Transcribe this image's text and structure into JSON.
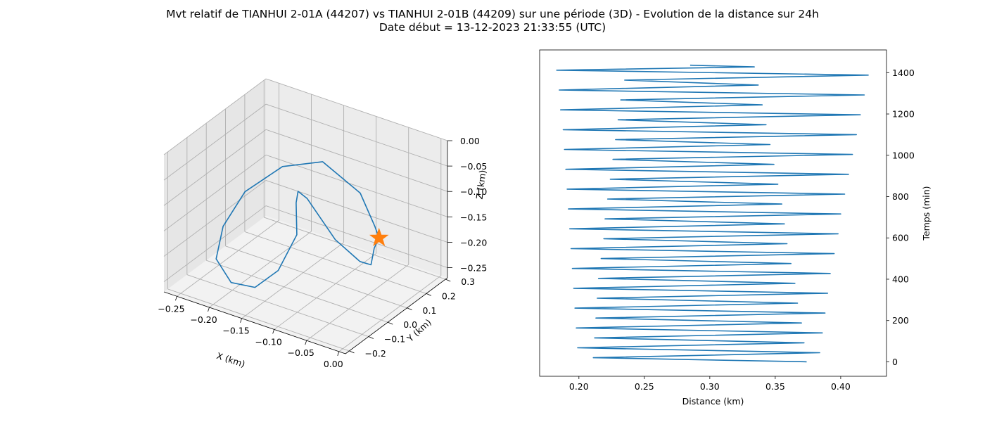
{
  "figure": {
    "title_line1": "Mvt relatif de TIANHUI 2-01A (44207) vs TIANHUI 2-01B (44209) sur une période (3D) - Evolution de la distance sur 24h",
    "title_line2": "Date début = 13-12-2023 21:33:55 (UTC)"
  },
  "colors": {
    "series": "#1f77b4",
    "marker": "#ff7f0e",
    "grid": "#b0b0b0",
    "pane": "#f2f2f2"
  },
  "chart_data": [
    {
      "type": "line3d",
      "xlabel": "X (km)",
      "ylabel": "Y (km)",
      "zlabel": "Z (km)",
      "xlim": [
        -0.27,
        0.01
      ],
      "ylim": [
        -0.22,
        0.31
      ],
      "zlim": [
        -0.27,
        0.0
      ],
      "x_ticks": [
        "−0.25",
        "−0.20",
        "−0.15",
        "−0.10",
        "−0.05",
        "0.00"
      ],
      "y_ticks": [
        "−0.2",
        "−0.1",
        "0.0",
        "0.1",
        "0.2",
        "0.3"
      ],
      "z_ticks": [
        "0.00",
        "−0.05",
        "−0.10",
        "−0.15",
        "−0.20",
        "−0.25"
      ],
      "grid": true,
      "marker": {
        "shape": "star",
        "x": -0.005,
        "y": 0.005,
        "z": -0.112
      },
      "series": [
        {
          "points": [
            [
              -0.005,
              0.005,
              -0.112
            ],
            [
              -0.005,
              -0.02,
              -0.125
            ],
            [
              -0.01,
              -0.02,
              -0.16
            ],
            [
              -0.03,
              -0.01,
              -0.165
            ],
            [
              -0.08,
              0.03,
              -0.155
            ],
            [
              -0.15,
              0.12,
              -0.13
            ],
            [
              -0.17,
              0.14,
              -0.13
            ],
            [
              -0.17,
              0.13,
              -0.15
            ],
            [
              -0.16,
              0.1,
              -0.2
            ],
            [
              -0.165,
              0.02,
              -0.25
            ],
            [
              -0.18,
              -0.05,
              -0.27
            ],
            [
              -0.205,
              -0.09,
              -0.26
            ],
            [
              -0.24,
              -0.05,
              -0.24
            ],
            [
              -0.25,
              0.02,
              -0.2
            ],
            [
              -0.24,
              0.1,
              -0.15
            ],
            [
              -0.2,
              0.16,
              -0.1
            ],
            [
              -0.15,
              0.2,
              -0.08
            ],
            [
              -0.08,
              0.16,
              -0.1
            ],
            [
              -0.025,
              0.05,
              -0.11
            ],
            [
              -0.005,
              0.005,
              -0.112
            ]
          ]
        }
      ]
    },
    {
      "type": "line",
      "xlabel": "Distance (km)",
      "ylabel": "Temps (min)",
      "xlim": [
        0.17,
        0.435
      ],
      "ylim": [
        -70,
        1510
      ],
      "x_ticks": [
        "0.20",
        "0.25",
        "0.30",
        "0.35",
        "0.40"
      ],
      "y_ticks": [
        "0",
        "200",
        "400",
        "600",
        "800",
        "1000",
        "1200",
        "1400"
      ],
      "y_axis_side": "right",
      "grid": false,
      "series": [
        {
          "x": [
            0.374,
            0.211,
            0.384,
            0.199,
            0.372,
            0.212,
            0.386,
            0.198,
            0.37,
            0.213,
            0.388,
            0.197,
            0.367,
            0.214,
            0.39,
            0.196,
            0.365,
            0.215,
            0.392,
            0.195,
            0.362,
            0.217,
            0.395,
            0.194,
            0.359,
            0.219,
            0.398,
            0.193,
            0.357,
            0.22,
            0.4,
            0.192,
            0.355,
            0.222,
            0.403,
            0.191,
            0.352,
            0.224,
            0.406,
            0.19,
            0.349,
            0.226,
            0.409,
            0.189,
            0.346,
            0.228,
            0.412,
            0.188,
            0.343,
            0.23,
            0.415,
            0.186,
            0.34,
            0.232,
            0.418,
            0.185,
            0.337,
            0.235,
            0.421,
            0.183,
            0.334,
            0.285
          ],
          "y": [
            0,
            20,
            44,
            68,
            92,
            116,
            140,
            164,
            188,
            212,
            236,
            260,
            284,
            308,
            332,
            356,
            380,
            404,
            428,
            452,
            476,
            500,
            524,
            548,
            572,
            596,
            620,
            644,
            668,
            692,
            716,
            740,
            764,
            788,
            812,
            836,
            860,
            884,
            908,
            932,
            956,
            980,
            1004,
            1028,
            1052,
            1076,
            1100,
            1124,
            1148,
            1172,
            1196,
            1220,
            1244,
            1268,
            1292,
            1316,
            1340,
            1364,
            1388,
            1412,
            1428,
            1436
          ]
        }
      ]
    }
  ]
}
